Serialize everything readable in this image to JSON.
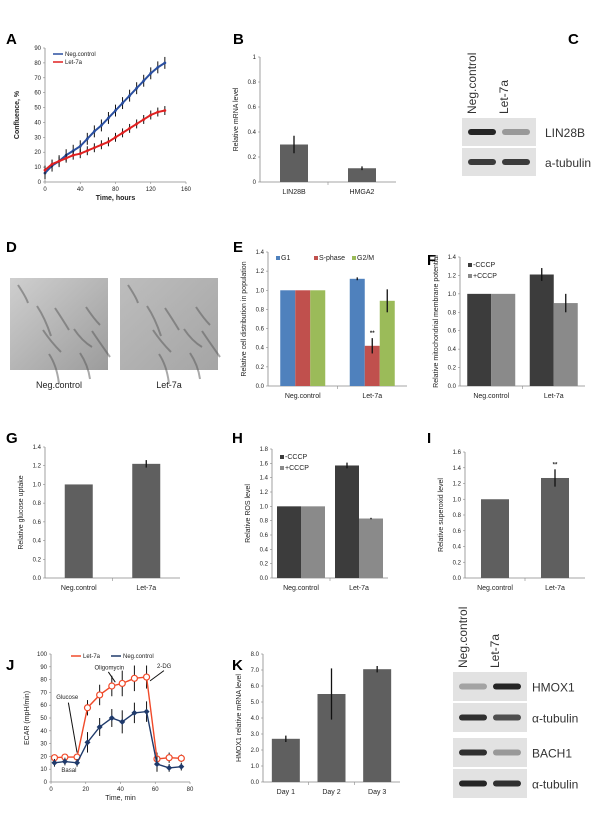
{
  "panel_labels": [
    "A",
    "B",
    "C",
    "D",
    "E",
    "F",
    "G",
    "H",
    "I",
    "J",
    "K"
  ],
  "chart_data": [
    {
      "panel": "A",
      "type": "line",
      "xlabel": "Time, hours",
      "ylabel": "Confluence, %",
      "ylim": [
        0,
        90
      ],
      "xlim": [
        0,
        160
      ],
      "yticks": [
        "0",
        "10",
        "20",
        "30",
        "40",
        "50",
        "60",
        "70",
        "80",
        "90"
      ],
      "xticks": [
        "0",
        "40",
        "80",
        "120",
        "160"
      ],
      "legend": "top-left",
      "error_bars": true,
      "x": [
        0,
        8,
        16,
        24,
        32,
        40,
        48,
        56,
        64,
        72,
        80,
        88,
        96,
        104,
        112,
        120,
        128,
        136
      ],
      "series": [
        {
          "name": "Neg.control",
          "color": "#2a4fa0",
          "values": [
            6,
            11,
            14,
            18,
            21,
            24,
            29,
            34,
            38,
            43,
            48,
            53,
            58,
            63,
            68,
            73,
            77,
            80
          ],
          "error": 4
        },
        {
          "name": "Let-7a",
          "color": "#e02020",
          "values": [
            8,
            12,
            14,
            16,
            18,
            19,
            21,
            23,
            25,
            27,
            30,
            33,
            36,
            39,
            42,
            45,
            47,
            48
          ],
          "error": 3
        }
      ]
    },
    {
      "panel": "B",
      "type": "bar",
      "ylabel": "Relative mRNA level",
      "ylim": [
        0,
        1
      ],
      "yticks": [
        "0",
        "0.2",
        "0.4",
        "0.6",
        "0.8",
        "1"
      ],
      "categories": [
        "LIN28B",
        "HMGA2"
      ],
      "series": [
        {
          "color": "#5f5f5f",
          "values": [
            0.3,
            0.11
          ],
          "errors": [
            0.07,
            0.015
          ]
        }
      ]
    },
    {
      "panel": "E",
      "type": "bar",
      "ylabel": "Relative cell distribution in population",
      "ylim": [
        0,
        1.4
      ],
      "yticks": [
        "0.0",
        "0.2",
        "0.4",
        "0.6",
        "0.8",
        "1.0",
        "1.2",
        "1.4"
      ],
      "categories": [
        "Neg.control",
        "Let-7a"
      ],
      "legend": "top-left",
      "series": [
        {
          "name": "G1",
          "color": "#4f81bd",
          "values": [
            1.0,
            1.12
          ],
          "errors": [
            0,
            0.015
          ]
        },
        {
          "name": "S-phase",
          "color": "#c0504d",
          "values": [
            1.0,
            0.42
          ],
          "errors": [
            0,
            0.08
          ],
          "annotations": [
            "",
            "**"
          ]
        },
        {
          "name": "G2/M",
          "color": "#9bbb59",
          "values": [
            1.0,
            0.89
          ],
          "errors": [
            0,
            0.12
          ]
        }
      ]
    },
    {
      "panel": "F",
      "type": "bar",
      "ylabel": "Relative mitochondrial membrane potential",
      "ylim": [
        0,
        1.4
      ],
      "yticks": [
        "0.0",
        "0.2",
        "0.4",
        "0.6",
        "0.8",
        "1.0",
        "1.2",
        "1.4"
      ],
      "categories": [
        "Neg.control",
        "Let-7a"
      ],
      "legend": "top-left",
      "series": [
        {
          "name": "-CCCP",
          "color": "#3c3c3c",
          "values": [
            1.0,
            1.21
          ],
          "errors": [
            0,
            0.07
          ]
        },
        {
          "name": "+CCCP",
          "color": "#8a8a8a",
          "values": [
            1.0,
            0.9
          ],
          "errors": [
            0,
            0.1
          ]
        }
      ]
    },
    {
      "panel": "G",
      "type": "bar",
      "ylabel": "Relative glucose uptake",
      "ylim": [
        0,
        1.4
      ],
      "yticks": [
        "0.0",
        "0.2",
        "0.4",
        "0.6",
        "0.8",
        "1.0",
        "1.2",
        "1.4"
      ],
      "categories": [
        "Neg.control",
        "Let-7a"
      ],
      "series": [
        {
          "color": "#5f5f5f",
          "values": [
            1.0,
            1.22
          ],
          "errors": [
            0,
            0.04
          ]
        }
      ]
    },
    {
      "panel": "H",
      "type": "bar",
      "ylabel": "Relative ROS level",
      "ylim": [
        0,
        1.8
      ],
      "yticks": [
        "0.0",
        "0.2",
        "0.4",
        "0.6",
        "0.8",
        "1.0",
        "1.2",
        "1.4",
        "1.6",
        "1.8"
      ],
      "categories": [
        "Neg.control",
        "Let-7a"
      ],
      "legend": "top-left",
      "series": [
        {
          "name": "-CCCP",
          "color": "#3c3c3c",
          "values": [
            1.0,
            1.57
          ],
          "errors": [
            0,
            0.04
          ]
        },
        {
          "name": "+CCCP",
          "color": "#8a8a8a",
          "values": [
            1.0,
            0.83
          ],
          "errors": [
            0,
            0.01
          ]
        }
      ]
    },
    {
      "panel": "I",
      "type": "bar",
      "ylabel": "Relative superoxid level",
      "ylim": [
        0,
        1.6
      ],
      "yticks": [
        "0.0",
        "0.2",
        "0.4",
        "0.6",
        "0.8",
        "1.0",
        "1.2",
        "1.4",
        "1.6"
      ],
      "categories": [
        "Neg.control",
        "Let-7a"
      ],
      "series": [
        {
          "color": "#5f5f5f",
          "values": [
            1.0,
            1.27
          ],
          "errors": [
            0,
            0.11
          ],
          "annotations": [
            "",
            "**"
          ]
        }
      ]
    },
    {
      "panel": "J",
      "type": "line",
      "xlabel": "Time, min",
      "ylabel": "ECAR (mpH/min)",
      "ylim": [
        0,
        100
      ],
      "xlim": [
        0,
        80
      ],
      "yticks": [
        "0",
        "10",
        "20",
        "30",
        "40",
        "50",
        "60",
        "70",
        "80",
        "90",
        "100"
      ],
      "xticks": [
        "0",
        "20",
        "40",
        "60",
        "80"
      ],
      "legend": "top",
      "error_bars": true,
      "x": [
        2,
        8,
        15,
        21,
        28,
        35,
        41,
        48,
        55,
        61,
        68,
        75
      ],
      "annotations": [
        "Glucose",
        "Oligomycin",
        "2-DG",
        "Basal"
      ],
      "series": [
        {
          "name": "Let-7a",
          "color": "#f04a2a",
          "marker": "open-circle",
          "values": [
            19,
            19.5,
            19.5,
            58,
            68,
            75,
            77,
            81,
            82,
            18,
            19,
            18.5
          ],
          "errors": [
            2,
            2,
            2,
            6,
            8,
            8,
            10,
            10,
            9,
            5,
            4,
            3
          ]
        },
        {
          "name": "Neg.control",
          "color": "#1f3a6b",
          "marker": "diamond",
          "values": [
            15,
            16,
            15,
            31,
            43,
            50,
            47,
            54,
            55,
            14,
            11,
            12
          ],
          "errors": [
            3,
            3,
            3,
            8,
            7,
            7,
            9,
            8,
            8,
            6,
            3,
            3
          ]
        }
      ]
    },
    {
      "panel": "K",
      "type": "bar",
      "ylabel": "HMOX1 relative mRNA level",
      "ylim": [
        0,
        8
      ],
      "yticks": [
        "0.0",
        "1.0",
        "2.0",
        "3.0",
        "4.0",
        "5.0",
        "6.0",
        "7.0",
        "8.0"
      ],
      "categories": [
        "Day 1",
        "Day 2",
        "Day 3"
      ],
      "series": [
        {
          "color": "#5f5f5f",
          "values": [
            2.7,
            5.5,
            7.05
          ],
          "errors": [
            0.2,
            1.6,
            0.2
          ]
        }
      ]
    }
  ],
  "micrographs": {
    "captions": [
      "Neg.control",
      "Let-7a"
    ]
  },
  "blot_C": {
    "lanes": [
      "Neg.control",
      "Let-7a"
    ],
    "rows": [
      {
        "label": "LIN28B",
        "intensity": [
          0.9,
          0.35
        ]
      },
      {
        "label": "a-tubulin",
        "intensity": [
          0.8,
          0.8
        ]
      }
    ]
  },
  "blot_K": {
    "lanes": [
      "Neg.control",
      "Let-7a"
    ],
    "rows": [
      {
        "label": "HMOX1",
        "intensity": [
          0.3,
          0.9
        ]
      },
      {
        "label": "α-tubulin",
        "intensity": [
          0.85,
          0.7
        ]
      },
      {
        "label": "BACH1",
        "intensity": [
          0.85,
          0.35
        ]
      },
      {
        "label": "α-tubulin",
        "intensity": [
          0.9,
          0.85
        ]
      }
    ]
  }
}
